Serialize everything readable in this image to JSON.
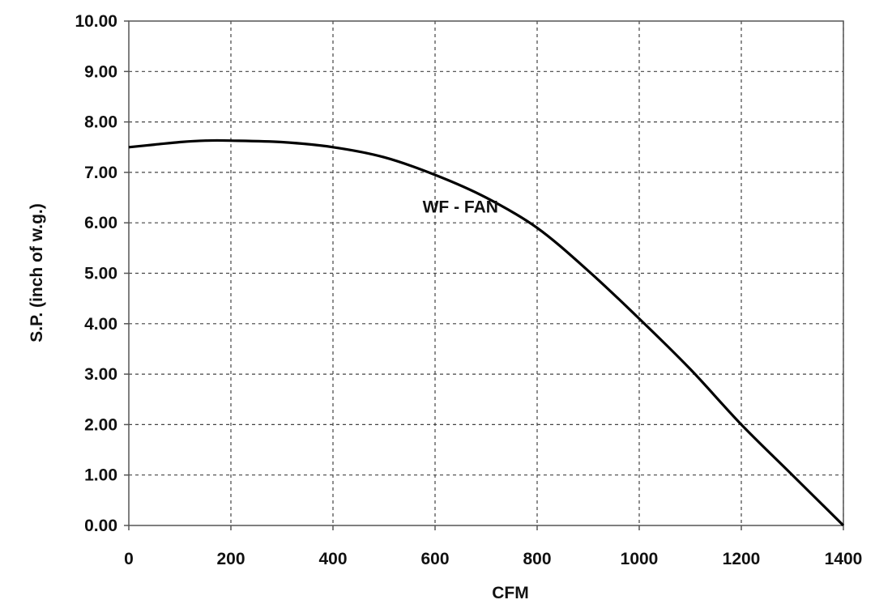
{
  "chart_data": {
    "type": "line",
    "title": "",
    "xlabel": "CFM",
    "ylabel": "S.P. (inch of w.g.)",
    "xlim": [
      0,
      1400
    ],
    "ylim": [
      0,
      10
    ],
    "x_ticks": [
      {
        "value": 0,
        "label": "0"
      },
      {
        "value": 200,
        "label": "200"
      },
      {
        "value": 400,
        "label": "400"
      },
      {
        "value": 600,
        "label": "600"
      },
      {
        "value": 800,
        "label": "800"
      },
      {
        "value": 1000,
        "label": "1000"
      },
      {
        "value": 1200,
        "label": "1200"
      },
      {
        "value": 1400,
        "label": "1400"
      }
    ],
    "y_ticks": [
      {
        "value": 0,
        "label": "0.00"
      },
      {
        "value": 1,
        "label": "1.00"
      },
      {
        "value": 2,
        "label": "2.00"
      },
      {
        "value": 3,
        "label": "3.00"
      },
      {
        "value": 4,
        "label": "4.00"
      },
      {
        "value": 5,
        "label": "5.00"
      },
      {
        "value": 6,
        "label": "6.00"
      },
      {
        "value": 7,
        "label": "7.00"
      },
      {
        "value": 8,
        "label": "8.00"
      },
      {
        "value": 9,
        "label": "9.00"
      },
      {
        "value": 10,
        "label": "10.00"
      }
    ],
    "grid": true,
    "series": [
      {
        "name": "WF - FAN",
        "color": "#000000",
        "points": [
          {
            "x": 0,
            "y": 7.5
          },
          {
            "x": 50,
            "y": 7.55
          },
          {
            "x": 100,
            "y": 7.6
          },
          {
            "x": 150,
            "y": 7.63
          },
          {
            "x": 200,
            "y": 7.63
          },
          {
            "x": 300,
            "y": 7.6
          },
          {
            "x": 400,
            "y": 7.5
          },
          {
            "x": 500,
            "y": 7.3
          },
          {
            "x": 600,
            "y": 6.95
          },
          {
            "x": 700,
            "y": 6.5
          },
          {
            "x": 800,
            "y": 5.9
          },
          {
            "x": 900,
            "y": 5.05
          },
          {
            "x": 1000,
            "y": 4.1
          },
          {
            "x": 1100,
            "y": 3.1
          },
          {
            "x": 1200,
            "y": 2.0
          },
          {
            "x": 1300,
            "y": 1.0
          },
          {
            "x": 1400,
            "y": 0.0
          }
        ]
      }
    ],
    "annotations": [
      {
        "text": "WF - FAN",
        "x": 820,
        "y": 6.2
      }
    ]
  }
}
